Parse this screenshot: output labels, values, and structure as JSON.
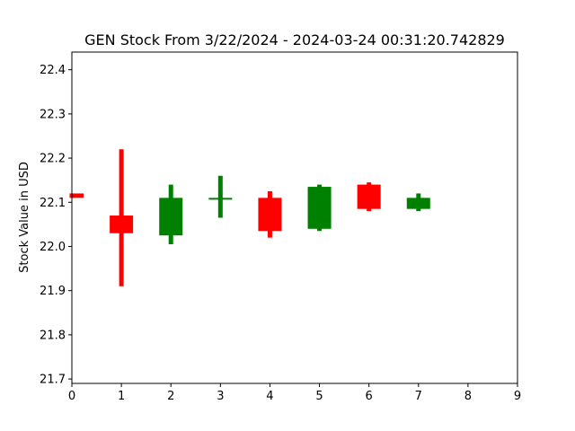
{
  "chart_data": {
    "type": "candlestick",
    "title": "GEN Stock From 3/22/2024 - 2024-03-24 00:31:20.742829",
    "xlabel": "",
    "ylabel": "Stock Value in USD",
    "xlim": [
      0,
      9
    ],
    "ylim": [
      21.69,
      22.44
    ],
    "x_ticks": [
      0,
      1,
      2,
      3,
      4,
      5,
      6,
      7,
      8,
      9
    ],
    "y_ticks": [
      21.7,
      21.8,
      21.9,
      22.0,
      22.1,
      22.2,
      22.3,
      22.4
    ],
    "grid": false,
    "up_color": "#008000",
    "down_color": "#ff0000",
    "candles": [
      {
        "x": 0,
        "open": 22.12,
        "close": 22.11,
        "high": 22.12,
        "low": 22.11
      },
      {
        "x": 1,
        "open": 22.07,
        "close": 22.03,
        "high": 22.22,
        "low": 21.91
      },
      {
        "x": 2,
        "open": 22.025,
        "close": 22.11,
        "high": 22.14,
        "low": 22.005
      },
      {
        "x": 3,
        "open": 22.11,
        "close": 22.11,
        "high": 22.16,
        "low": 22.065
      },
      {
        "x": 4,
        "open": 22.11,
        "close": 22.035,
        "high": 22.125,
        "low": 22.02
      },
      {
        "x": 5,
        "open": 22.04,
        "close": 22.135,
        "high": 22.14,
        "low": 22.035
      },
      {
        "x": 6,
        "open": 22.14,
        "close": 22.085,
        "high": 22.145,
        "low": 22.08
      },
      {
        "x": 7,
        "open": 22.085,
        "close": 22.11,
        "high": 22.12,
        "low": 22.08
      }
    ]
  }
}
